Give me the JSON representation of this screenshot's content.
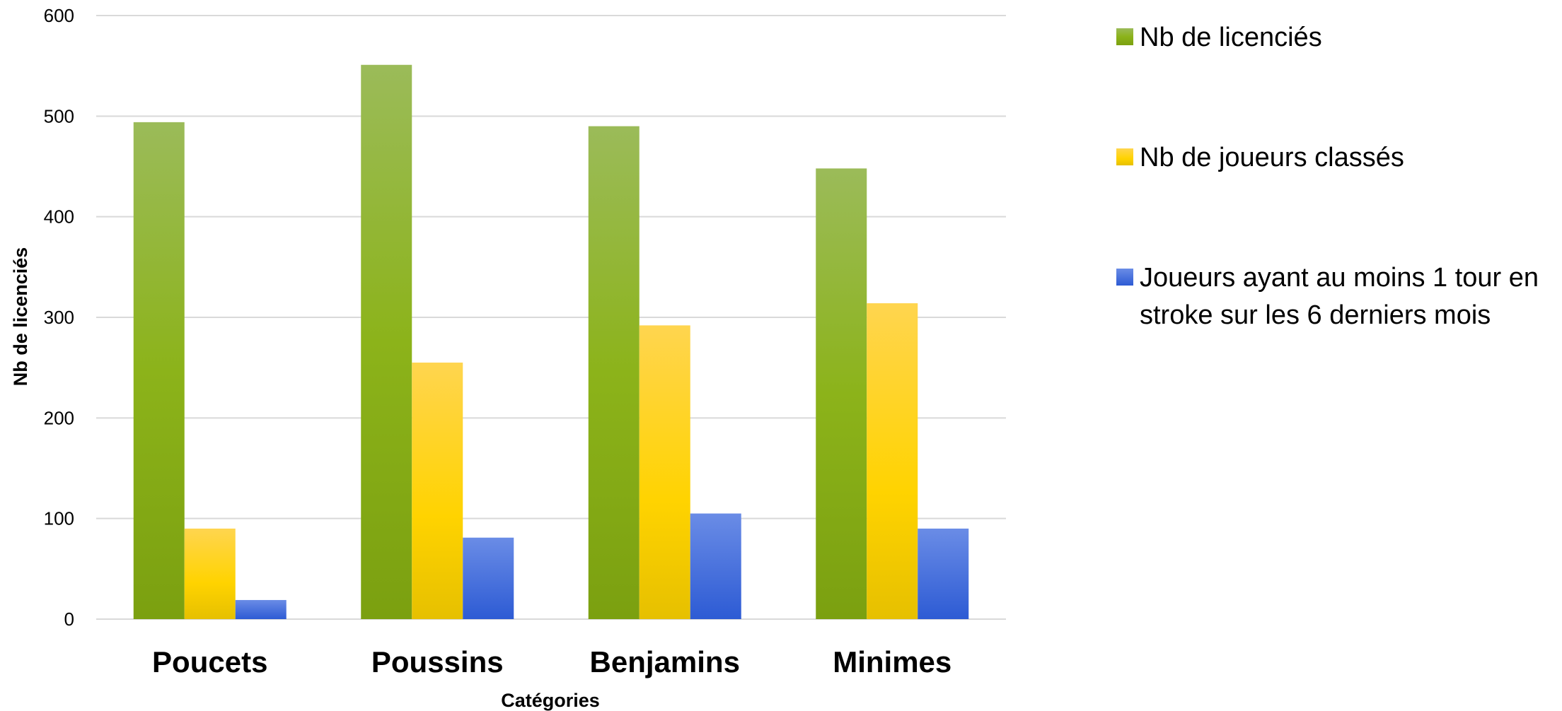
{
  "chart_data": {
    "type": "bar",
    "categories": [
      "Poucets",
      "Poussins",
      "Benjamins",
      "Minimes"
    ],
    "series": [
      {
        "name": "Nb de licenciés",
        "values": [
          494,
          551,
          490,
          448
        ],
        "color": "#7fa414"
      },
      {
        "name": "Nb de joueurs classés",
        "values": [
          90,
          255,
          292,
          314
        ],
        "color": "#f5c400"
      },
      {
        "name": "Joueurs ayant au moins 1 tour en stroke sur les 6 derniers mois",
        "values": [
          19,
          81,
          105,
          90
        ],
        "color": "#3b64d8"
      }
    ],
    "xlabel": "Catégories",
    "ylabel": "Nb de licenciés",
    "ylim": [
      0,
      600
    ],
    "yticks": [
      0,
      100,
      200,
      300,
      400,
      500,
      600
    ],
    "grid": true,
    "legend_position": "right"
  }
}
